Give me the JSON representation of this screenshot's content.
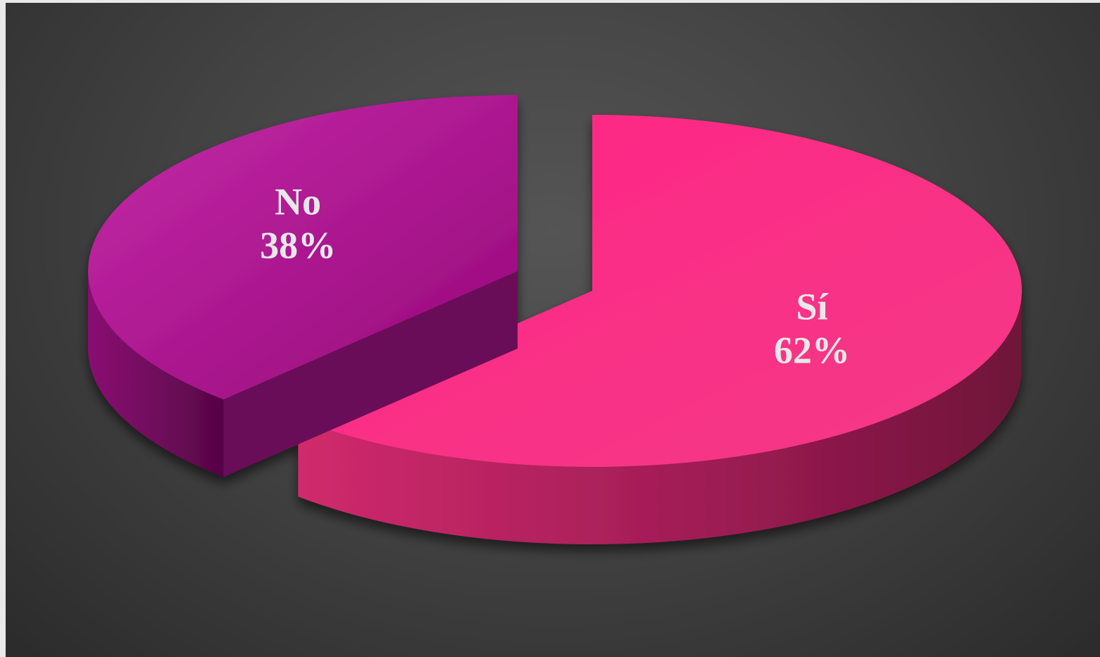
{
  "chart_data": {
    "type": "pie",
    "style": "3d-exploded",
    "title": "",
    "slices": [
      {
        "label": "Sí",
        "value": 62,
        "display": "62%",
        "color": "#f5237d",
        "side_color": "#b0205c"
      },
      {
        "label": "No",
        "value": 38,
        "display": "38%",
        "color": "#b0128e",
        "side_color": "#6a0a58"
      }
    ],
    "legend": "none",
    "background": "#444444"
  }
}
